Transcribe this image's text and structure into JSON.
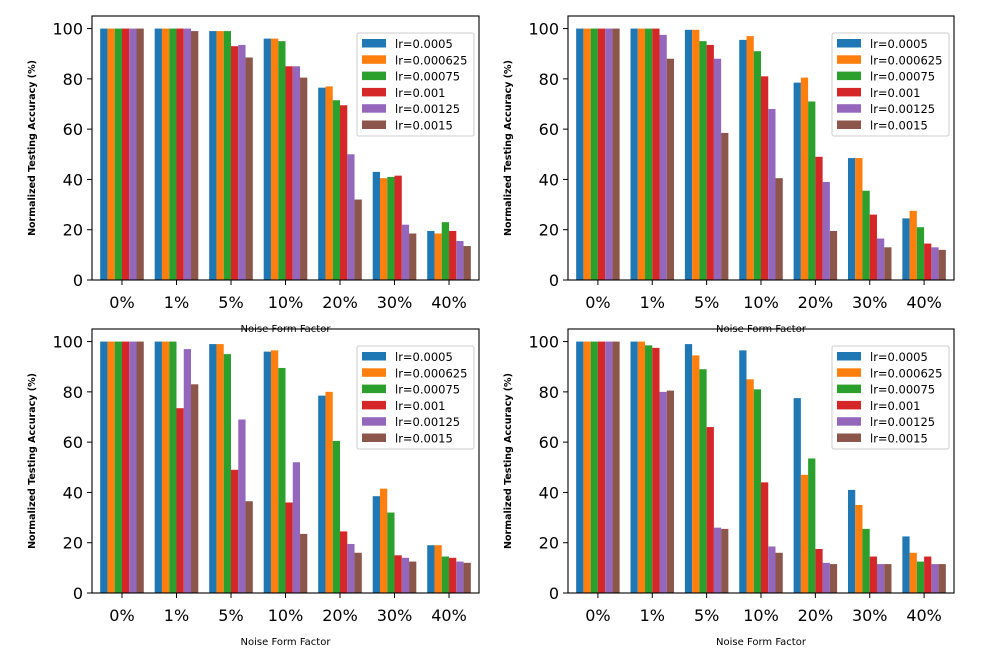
{
  "chart_data": [
    {
      "type": "bar",
      "categories": [
        "0%",
        "1%",
        "5%",
        "10%",
        "20%",
        "30%",
        "40%"
      ],
      "xlabel": "Noise Form Factor",
      "ylabel": "Normalized Testing Accuracy (%)",
      "ylim": [
        0,
        105
      ],
      "yticks": [
        "0",
        "20",
        "40",
        "60",
        "80",
        "100"
      ],
      "legend_position": "top-right",
      "series": [
        {
          "name": "lr=0.0005",
          "values": [
            100,
            100,
            99,
            96,
            76.5,
            43,
            19.5
          ]
        },
        {
          "name": "lr=0.000625",
          "values": [
            100,
            100,
            99,
            96,
            77,
            40.5,
            18.5
          ]
        },
        {
          "name": "lr=0.00075",
          "values": [
            100,
            100,
            99,
            95,
            71.5,
            41,
            23
          ]
        },
        {
          "name": "lr=0.001",
          "values": [
            100,
            100,
            93,
            85,
            69.5,
            41.5,
            19.5
          ]
        },
        {
          "name": "lr=0.00125",
          "values": [
            100,
            100,
            93.5,
            85,
            50,
            22,
            15.5
          ]
        },
        {
          "name": "lr=0.0015",
          "values": [
            100,
            99,
            88.5,
            80.5,
            32,
            18.5,
            13.5
          ]
        }
      ]
    },
    {
      "type": "bar",
      "categories": [
        "0%",
        "1%",
        "5%",
        "10%",
        "20%",
        "30%",
        "40%"
      ],
      "xlabel": "Noise Form Factor",
      "ylabel": "Normalized Testing Accuracy (%)",
      "ylim": [
        0,
        105
      ],
      "yticks": [
        "0",
        "20",
        "40",
        "60",
        "80",
        "100"
      ],
      "legend_position": "top-right",
      "series": [
        {
          "name": "lr=0.0005",
          "values": [
            100,
            100,
            99.5,
            95.5,
            78.5,
            48.5,
            24.5
          ]
        },
        {
          "name": "lr=0.000625",
          "values": [
            100,
            100,
            99.5,
            97,
            80.5,
            48.5,
            27.5
          ]
        },
        {
          "name": "lr=0.00075",
          "values": [
            100,
            100,
            95,
            91,
            71,
            35.5,
            21
          ]
        },
        {
          "name": "lr=0.001",
          "values": [
            100,
            100,
            93.5,
            81,
            49,
            26,
            14.5
          ]
        },
        {
          "name": "lr=0.00125",
          "values": [
            100,
            97.5,
            88,
            68,
            39,
            16.5,
            13
          ]
        },
        {
          "name": "lr=0.0015",
          "values": [
            100,
            88,
            58.5,
            40.5,
            19.5,
            13,
            12
          ]
        }
      ]
    },
    {
      "type": "bar",
      "categories": [
        "0%",
        "1%",
        "5%",
        "10%",
        "20%",
        "30%",
        "40%"
      ],
      "xlabel": "Noise Form Factor",
      "ylabel": "Normalized Testing Accuracy (%)",
      "ylim": [
        0,
        105
      ],
      "yticks": [
        "0",
        "20",
        "40",
        "60",
        "80",
        "100"
      ],
      "legend_position": "top-right",
      "series": [
        {
          "name": "lr=0.0005",
          "values": [
            100,
            100,
            99,
            96,
            78.5,
            38.5,
            19
          ]
        },
        {
          "name": "lr=0.000625",
          "values": [
            100,
            100,
            99,
            96.5,
            80,
            41.5,
            19
          ]
        },
        {
          "name": "lr=0.00075",
          "values": [
            100,
            100,
            95,
            89.5,
            60.5,
            32,
            14.5
          ]
        },
        {
          "name": "lr=0.001",
          "values": [
            100,
            73.5,
            49,
            36,
            24.5,
            15,
            14
          ]
        },
        {
          "name": "lr=0.00125",
          "values": [
            100,
            97,
            69,
            52,
            19.5,
            14,
            12.5
          ]
        },
        {
          "name": "lr=0.0015",
          "values": [
            100,
            83,
            36.5,
            23.5,
            16,
            12.5,
            12
          ]
        }
      ]
    },
    {
      "type": "bar",
      "categories": [
        "0%",
        "1%",
        "5%",
        "10%",
        "20%",
        "30%",
        "40%"
      ],
      "xlabel": "Noise Form Factor",
      "ylabel": "Normalized Testing Accuracy (%)",
      "ylim": [
        0,
        105
      ],
      "yticks": [
        "0",
        "20",
        "40",
        "60",
        "80",
        "100"
      ],
      "legend_position": "top-right",
      "series": [
        {
          "name": "lr=0.0005",
          "values": [
            100,
            100,
            99,
            96.5,
            77.5,
            41,
            22.5
          ]
        },
        {
          "name": "lr=0.000625",
          "values": [
            100,
            100,
            94.5,
            85,
            47,
            35,
            16
          ]
        },
        {
          "name": "lr=0.00075",
          "values": [
            100,
            98.5,
            89,
            81,
            53.5,
            25.5,
            12.5
          ]
        },
        {
          "name": "lr=0.001",
          "values": [
            100,
            97.5,
            66,
            44,
            17.5,
            14.5,
            14.5
          ]
        },
        {
          "name": "lr=0.00125",
          "values": [
            100,
            80,
            26,
            18.5,
            12,
            11.5,
            11.5
          ]
        },
        {
          "name": "lr=0.0015",
          "values": [
            100,
            80.5,
            25.5,
            16,
            11.5,
            11.5,
            11.5
          ]
        }
      ]
    }
  ],
  "colors": [
    "#1f77b4",
    "#ff7f0e",
    "#2ca02c",
    "#d62728",
    "#9467bd",
    "#8c564b"
  ]
}
